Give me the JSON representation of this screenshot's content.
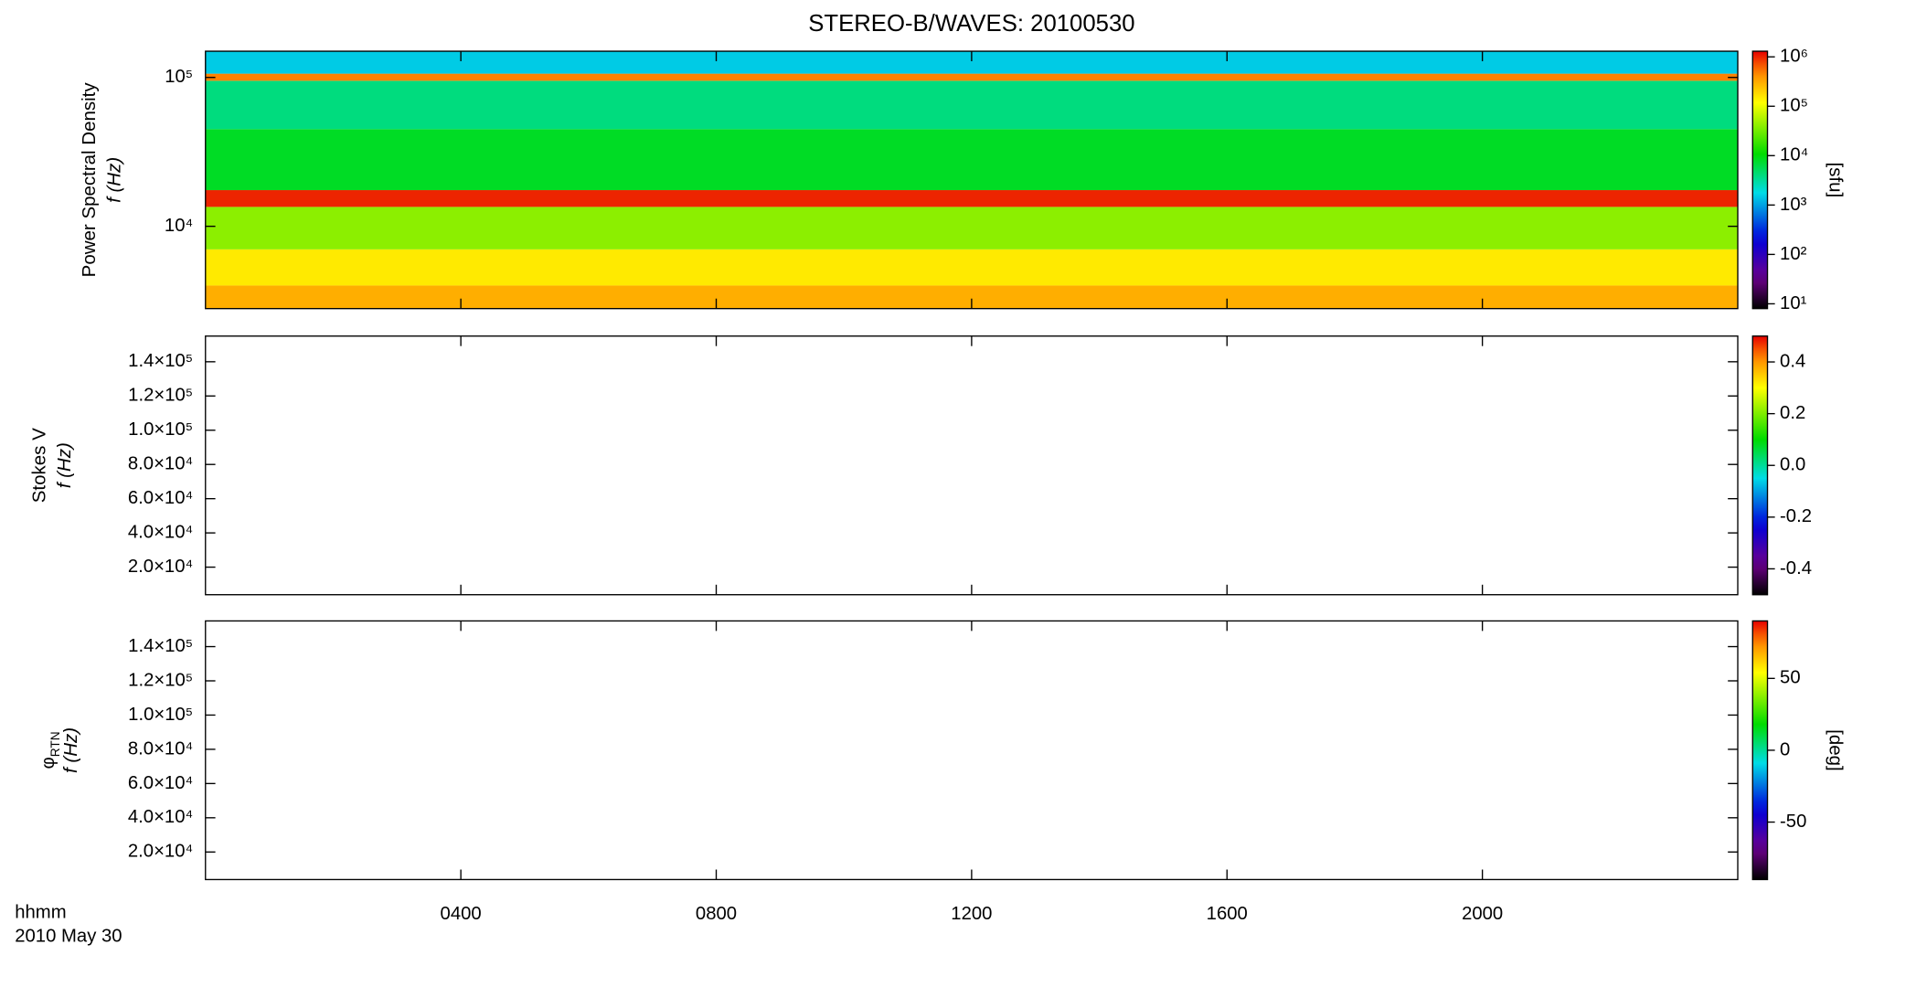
{
  "chart_data": [
    {
      "type": "heatmap",
      "title": "STEREO-B/WAVES: 20100530",
      "ylabel": "Power Spectral Density",
      "yunit": "f (Hz)",
      "ylog": true,
      "ylim": [
        2800,
        150000
      ],
      "yticks": [
        {
          "value": 10000,
          "label": "10⁴"
        },
        {
          "value": 100000,
          "label": "10⁵"
        }
      ],
      "y_bins": [
        2800,
        4000,
        7000,
        13500,
        17500,
        45000,
        95000,
        106000,
        150000
      ],
      "values": [
        300000,
        150000,
        40000,
        1000000,
        8000,
        4000,
        500000,
        1500
      ],
      "colorbar": {
        "log": true,
        "lim": [
          8,
          1300000
        ],
        "label": "[sfu]",
        "ticks": [
          {
            "value": 10,
            "label": "10¹"
          },
          {
            "value": 100,
            "label": "10²"
          },
          {
            "value": 1000,
            "label": "10³"
          },
          {
            "value": 10000,
            "label": "10⁴"
          },
          {
            "value": 100000,
            "label": "10⁵"
          },
          {
            "value": 1000000,
            "label": "10⁶"
          }
        ]
      }
    },
    {
      "type": "heatmap",
      "ylabel": "Stokes V",
      "yunit": "f (Hz)",
      "ylog": false,
      "ylim": [
        3900,
        155000
      ],
      "yticks": [
        {
          "value": 20000,
          "label": "2.0×10⁴"
        },
        {
          "value": 40000,
          "label": "4.0×10⁴"
        },
        {
          "value": 60000,
          "label": "6.0×10⁴"
        },
        {
          "value": 80000,
          "label": "8.0×10⁴"
        },
        {
          "value": 100000,
          "label": "1.0×10⁵"
        },
        {
          "value": 120000,
          "label": "1.2×10⁵"
        },
        {
          "value": 140000,
          "label": "1.4×10⁵"
        }
      ],
      "colorbar": {
        "log": false,
        "lim": [
          -0.5,
          0.5
        ],
        "ticks": [
          -0.4,
          -0.2,
          {
            "value": 0,
            "label": "0.0"
          },
          0.2,
          0.4
        ]
      }
    },
    {
      "type": "heatmap",
      "ylabel": "φ",
      "ylabel_sub": "RTN",
      "yunit": "f (Hz)",
      "ylog": false,
      "ylim": [
        3900,
        155000
      ],
      "yticks": [
        {
          "value": 20000,
          "label": "2.0×10⁴"
        },
        {
          "value": 40000,
          "label": "4.0×10⁴"
        },
        {
          "value": 60000,
          "label": "6.0×10⁴"
        },
        {
          "value": 80000,
          "label": "8.0×10⁴"
        },
        {
          "value": 100000,
          "label": "1.0×10⁵"
        },
        {
          "value": 120000,
          "label": "1.2×10⁵"
        },
        {
          "value": 140000,
          "label": "1.4×10⁵"
        }
      ],
      "colorbar": {
        "log": false,
        "lim": [
          -90,
          90
        ],
        "label": "[deg]",
        "ticks": [
          -50,
          0,
          50
        ]
      },
      "xlabel": "hhmm",
      "date": "2010 May 30",
      "xlim": [
        0,
        24
      ],
      "xticks": [
        {
          "value": 4,
          "label": "0400"
        },
        {
          "value": 8,
          "label": "0800"
        },
        {
          "value": 12,
          "label": "1200"
        },
        {
          "value": 16,
          "label": "1600"
        },
        {
          "value": 20,
          "label": "2000"
        }
      ]
    }
  ]
}
